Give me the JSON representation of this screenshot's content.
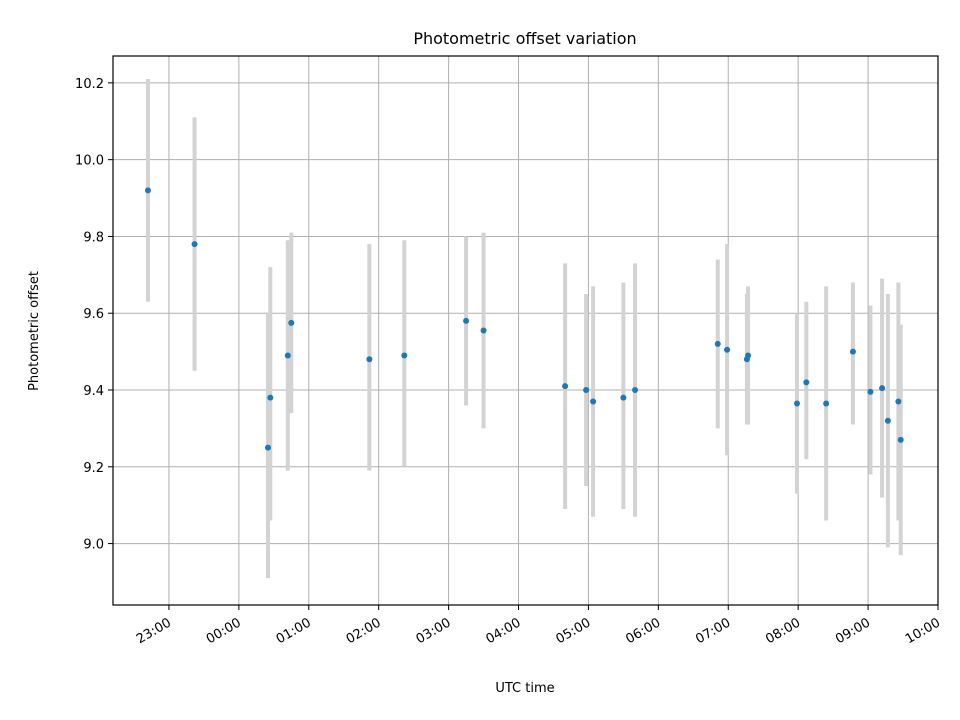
{
  "chart_data": {
    "type": "scatter",
    "title": "Photometric offset variation",
    "xlabel": "UTC time",
    "ylabel": "Photometric offset",
    "x_tick_labels": [
      "23:00",
      "00:00",
      "01:00",
      "02:00",
      "03:00",
      "04:00",
      "05:00",
      "06:00",
      "07:00",
      "08:00",
      "09:00",
      "10:00"
    ],
    "x_ticks_hours": [
      23,
      24,
      25,
      26,
      27,
      28,
      29,
      30,
      31,
      32,
      33,
      34
    ],
    "y_ticks": [
      9.0,
      9.2,
      9.4,
      9.6,
      9.8,
      10.0,
      10.2
    ],
    "xlim_hours": [
      22.2,
      34.0
    ],
    "ylim": [
      8.84,
      10.27
    ],
    "grid": true,
    "colors": {
      "point": "#1f77b4",
      "errorbar": "#d3d3d3",
      "grid": "#b0b0b0"
    },
    "points": [
      {
        "t": "22:42",
        "y": 9.92,
        "lo": 9.63,
        "hi": 10.21
      },
      {
        "t": "23:22",
        "y": 9.78,
        "lo": 9.45,
        "hi": 10.11
      },
      {
        "t": "00:25",
        "y": 9.25,
        "lo": 8.91,
        "hi": 9.6
      },
      {
        "t": "00:27",
        "y": 9.38,
        "lo": 9.06,
        "hi": 9.72
      },
      {
        "t": "00:42",
        "y": 9.49,
        "lo": 9.19,
        "hi": 9.79
      },
      {
        "t": "00:45",
        "y": 9.575,
        "lo": 9.34,
        "hi": 9.81
      },
      {
        "t": "01:52",
        "y": 9.48,
        "lo": 9.19,
        "hi": 9.78
      },
      {
        "t": "02:22",
        "y": 9.49,
        "lo": 9.2,
        "hi": 9.79
      },
      {
        "t": "03:15",
        "y": 9.58,
        "lo": 9.36,
        "hi": 9.8
      },
      {
        "t": "03:30",
        "y": 9.555,
        "lo": 9.3,
        "hi": 9.81
      },
      {
        "t": "04:40",
        "y": 9.41,
        "lo": 9.09,
        "hi": 9.73
      },
      {
        "t": "04:58",
        "y": 9.4,
        "lo": 9.15,
        "hi": 9.65
      },
      {
        "t": "05:04",
        "y": 9.37,
        "lo": 9.07,
        "hi": 9.67
      },
      {
        "t": "05:30",
        "y": 9.38,
        "lo": 9.09,
        "hi": 9.68
      },
      {
        "t": "05:40",
        "y": 9.4,
        "lo": 9.07,
        "hi": 9.73
      },
      {
        "t": "06:51",
        "y": 9.52,
        "lo": 9.3,
        "hi": 9.74
      },
      {
        "t": "06:59",
        "y": 9.505,
        "lo": 9.23,
        "hi": 9.78
      },
      {
        "t": "07:16",
        "y": 9.48,
        "lo": 9.31,
        "hi": 9.65
      },
      {
        "t": "07:17",
        "y": 9.49,
        "lo": 9.31,
        "hi": 9.67
      },
      {
        "t": "07:59",
        "y": 9.365,
        "lo": 9.13,
        "hi": 9.6
      },
      {
        "t": "08:07",
        "y": 9.42,
        "lo": 9.22,
        "hi": 9.63
      },
      {
        "t": "08:24",
        "y": 9.365,
        "lo": 9.06,
        "hi": 9.67
      },
      {
        "t": "08:47",
        "y": 9.5,
        "lo": 9.31,
        "hi": 9.68
      },
      {
        "t": "09:02",
        "y": 9.395,
        "lo": 9.18,
        "hi": 9.62
      },
      {
        "t": "09:12",
        "y": 9.405,
        "lo": 9.12,
        "hi": 9.69
      },
      {
        "t": "09:17",
        "y": 9.32,
        "lo": 8.99,
        "hi": 9.65
      },
      {
        "t": "09:26",
        "y": 9.37,
        "lo": 9.06,
        "hi": 9.68
      },
      {
        "t": "09:28",
        "y": 9.27,
        "lo": 8.97,
        "hi": 9.57
      }
    ]
  }
}
